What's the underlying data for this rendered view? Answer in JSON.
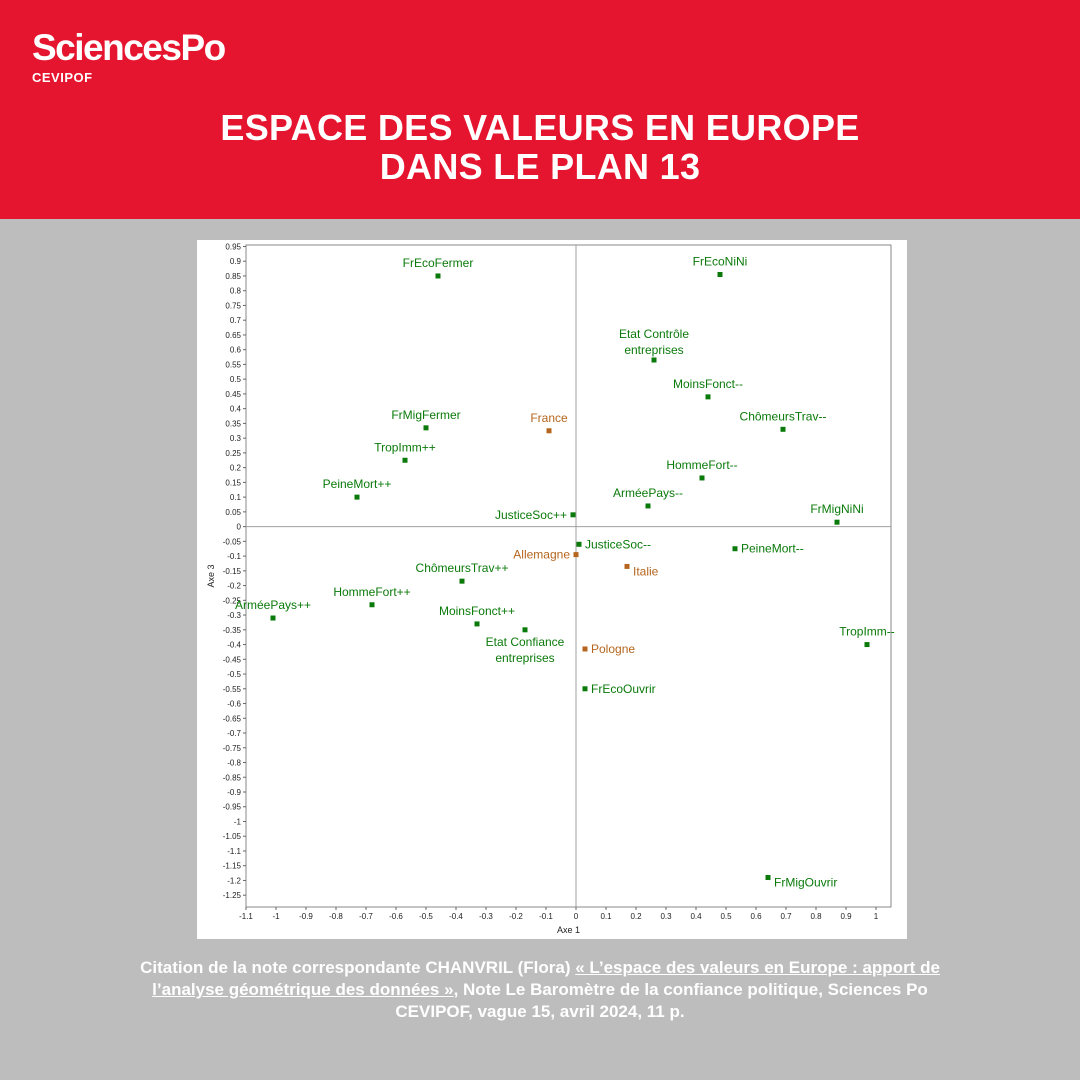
{
  "brand": {
    "name": "SciencesPo",
    "sub": "CEVIPOF"
  },
  "title": {
    "line1": "ESPACE DES VALEURS EN EUROPE",
    "line2": "DANS LE PLAN 13"
  },
  "colors": {
    "header_bg": "#e5152f",
    "page_bg": "#bdbdbd",
    "modality": "#0a7a0a",
    "country": "#b5651d",
    "axis": "#a0a0a0"
  },
  "chart_data": {
    "type": "scatter",
    "xlabel": "Axe 1",
    "ylabel": "Axe 3",
    "xlim": [
      -1.1,
      1.05
    ],
    "ylim": [
      -1.29,
      0.955
    ],
    "x_ticks": [
      -1.1,
      -1,
      -0.9,
      -0.8,
      -0.7,
      -0.6,
      -0.5,
      -0.4,
      -0.3,
      -0.2,
      -0.1,
      0,
      0.1,
      0.2,
      0.3,
      0.4,
      0.5,
      0.6,
      0.7,
      0.8,
      0.9,
      1
    ],
    "y_ticks": [
      0.95,
      0.9,
      0.85,
      0.8,
      0.75,
      0.7,
      0.65,
      0.6,
      0.55,
      0.5,
      0.45,
      0.4,
      0.35,
      0.3,
      0.25,
      0.2,
      0.15,
      0.1,
      0.05,
      0,
      -0.05,
      -0.1,
      -0.15,
      -0.2,
      -0.25,
      -0.3,
      -0.35,
      -0.4,
      -0.45,
      -0.5,
      -0.55,
      -0.6,
      -0.65,
      -0.7,
      -0.75,
      -0.8,
      -0.85,
      -0.9,
      -0.95,
      -1,
      -1.05,
      -1.1,
      -1.15,
      -1.2,
      -1.25
    ],
    "series": [
      {
        "group": "modality",
        "points": [
          {
            "label": "FrEcoFermer",
            "x": -0.46,
            "y": 0.85,
            "pos": "above"
          },
          {
            "label": "FrEcoNiNi",
            "x": 0.48,
            "y": 0.855,
            "pos": "above"
          },
          {
            "label": "Etat Contrôle entreprises",
            "x": 0.26,
            "y": 0.565,
            "pos": "above2"
          },
          {
            "label": "MoinsFonct--",
            "x": 0.44,
            "y": 0.44,
            "pos": "above"
          },
          {
            "label": "ChômeursTrav--",
            "x": 0.69,
            "y": 0.33,
            "pos": "above"
          },
          {
            "label": "FrMigFermer",
            "x": -0.5,
            "y": 0.335,
            "pos": "above"
          },
          {
            "label": "TropImm++",
            "x": -0.57,
            "y": 0.225,
            "pos": "above"
          },
          {
            "label": "HommeFort--",
            "x": 0.42,
            "y": 0.165,
            "pos": "above"
          },
          {
            "label": "PeineMort++",
            "x": -0.73,
            "y": 0.1,
            "pos": "above"
          },
          {
            "label": "ArméePays--",
            "x": 0.24,
            "y": 0.07,
            "pos": "above"
          },
          {
            "label": "JusticeSoc++",
            "x": -0.01,
            "y": 0.04,
            "pos": "left"
          },
          {
            "label": "FrMigNiNi",
            "x": 0.87,
            "y": 0.015,
            "pos": "above"
          },
          {
            "label": "JusticeSoc--",
            "x": 0.01,
            "y": -0.06,
            "pos": "right"
          },
          {
            "label": "PeineMort--",
            "x": 0.53,
            "y": -0.075,
            "pos": "right"
          },
          {
            "label": "ChômeursTrav++",
            "x": -0.38,
            "y": -0.185,
            "pos": "above"
          },
          {
            "label": "HommeFort++",
            "x": -0.68,
            "y": -0.265,
            "pos": "above"
          },
          {
            "label": "ArméePays++",
            "x": -1.01,
            "y": -0.31,
            "pos": "above"
          },
          {
            "label": "MoinsFonct++",
            "x": -0.33,
            "y": -0.33,
            "pos": "above"
          },
          {
            "label": "Etat Confiance entreprises",
            "x": -0.17,
            "y": -0.35,
            "pos": "below2"
          },
          {
            "label": "TropImm--",
            "x": 0.97,
            "y": -0.4,
            "pos": "above"
          },
          {
            "label": "FrEcoOuvrir",
            "x": 0.03,
            "y": -0.55,
            "pos": "right"
          },
          {
            "label": "FrMigOuvrir",
            "x": 0.64,
            "y": -1.19,
            "pos": "right-below"
          }
        ]
      },
      {
        "group": "country",
        "points": [
          {
            "label": "France",
            "x": -0.09,
            "y": 0.325,
            "pos": "above"
          },
          {
            "label": "Allemagne",
            "x": 0,
            "y": -0.095,
            "pos": "left"
          },
          {
            "label": "Italie",
            "x": 0.17,
            "y": -0.135,
            "pos": "right-below"
          },
          {
            "label": "Pologne",
            "x": 0.03,
            "y": -0.415,
            "pos": "right"
          }
        ]
      }
    ]
  },
  "footer": {
    "prefix": "Citation de la note correspondante CHANVRIL (Flora) ",
    "link": "« L’espace des valeurs en Europe : apport de l’analyse géométrique des données »",
    "suffix": ", Note Le Baromètre de la confiance politique, Sciences Po CEVIPOF, vague 15, avril 2024, 11 p."
  }
}
